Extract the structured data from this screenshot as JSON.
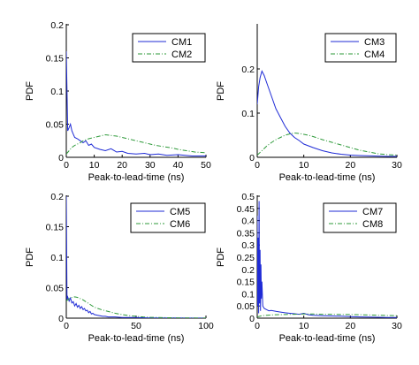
{
  "chart_data": [
    {
      "type": "line",
      "xlabel": "Peak-to-lead-time (ns)",
      "ylabel": "PDF",
      "xlim": [
        0,
        50
      ],
      "ylim": [
        0,
        0.2
      ],
      "xticks": [
        "0",
        "10",
        "20",
        "30",
        "40",
        "50"
      ],
      "yticks": [
        "0",
        "0.05",
        "0.1",
        "0.15",
        "0.2"
      ],
      "legend": "top-right",
      "grid": false,
      "series": [
        {
          "name": "CM1",
          "color": "#1f2bd6",
          "style": "solid",
          "x": [
            0,
            0.5,
            1,
            1.5,
            2,
            2.5,
            3,
            4,
            5,
            6,
            7,
            8,
            9,
            10,
            12,
            14,
            16,
            18,
            20,
            22,
            25,
            28,
            30,
            33,
            36,
            40,
            45,
            50
          ],
          "y": [
            0.16,
            0.04,
            0.045,
            0.05,
            0.04,
            0.035,
            0.03,
            0.028,
            0.025,
            0.022,
            0.025,
            0.018,
            0.02,
            0.015,
            0.012,
            0.01,
            0.013,
            0.008,
            0.009,
            0.006,
            0.005,
            0.006,
            0.004,
            0.005,
            0.003,
            0.004,
            0.002,
            0.002
          ]
        },
        {
          "name": "CM2",
          "color": "#2e9a3a",
          "style": "dashdot",
          "x": [
            0,
            1,
            2,
            3,
            4,
            5,
            6,
            8,
            10,
            12,
            14,
            16,
            18,
            20,
            22,
            24,
            26,
            28,
            30,
            32,
            35,
            38,
            40,
            43,
            46,
            50
          ],
          "y": [
            0.005,
            0.01,
            0.015,
            0.018,
            0.02,
            0.022,
            0.025,
            0.028,
            0.03,
            0.032,
            0.034,
            0.033,
            0.032,
            0.03,
            0.028,
            0.026,
            0.024,
            0.022,
            0.02,
            0.018,
            0.016,
            0.014,
            0.012,
            0.01,
            0.008,
            0.007
          ]
        }
      ]
    },
    {
      "type": "line",
      "xlabel": "Peak-to-lead-time (ns)",
      "ylabel": "PDF",
      "xlim": [
        0,
        30
      ],
      "ylim": [
        0,
        0.3
      ],
      "xticks": [
        "0",
        "10",
        "20",
        "30"
      ],
      "yticks": [
        "0",
        "0.1",
        "0.2"
      ],
      "legend": "top-right",
      "grid": false,
      "series": [
        {
          "name": "CM3",
          "color": "#1f2bd6",
          "style": "solid",
          "x": [
            0,
            0.3,
            0.6,
            1,
            1.5,
            2,
            3,
            4,
            5,
            6,
            7,
            8,
            9,
            10,
            12,
            14,
            16,
            18,
            20,
            22,
            25,
            28,
            30
          ],
          "y": [
            0.12,
            0.16,
            0.18,
            0.195,
            0.185,
            0.17,
            0.14,
            0.11,
            0.09,
            0.07,
            0.055,
            0.045,
            0.038,
            0.03,
            0.022,
            0.015,
            0.01,
            0.007,
            0.005,
            0.004,
            0.003,
            0.002,
            0.002
          ]
        },
        {
          "name": "CM4",
          "color": "#2e9a3a",
          "style": "dashdot",
          "x": [
            0,
            1,
            2,
            3,
            4,
            5,
            6,
            7,
            8,
            9,
            10,
            11,
            12,
            14,
            16,
            18,
            20,
            22,
            24,
            26,
            28,
            30
          ],
          "y": [
            0.005,
            0.015,
            0.025,
            0.033,
            0.04,
            0.045,
            0.05,
            0.053,
            0.055,
            0.054,
            0.052,
            0.05,
            0.047,
            0.04,
            0.034,
            0.028,
            0.022,
            0.016,
            0.012,
            0.008,
            0.006,
            0.005
          ]
        }
      ]
    },
    {
      "type": "line",
      "xlabel": "Peak-to-lead-time (ns)",
      "ylabel": "PDF",
      "xlim": [
        0,
        100
      ],
      "ylim": [
        0,
        0.2
      ],
      "xticks": [
        "0",
        "50",
        "100"
      ],
      "yticks": [
        "0",
        "0.05",
        "0.1",
        "0.15",
        "0.2"
      ],
      "legend": "top-right",
      "grid": false,
      "series": [
        {
          "name": "CM5",
          "color": "#1f2bd6",
          "style": "solid",
          "x": [
            0,
            0.5,
            1,
            2,
            3,
            4,
            5,
            6,
            7,
            8,
            9,
            10,
            11,
            12,
            13,
            14,
            15,
            16,
            17,
            18,
            19,
            20,
            22,
            24,
            26,
            28,
            30,
            35,
            40,
            50,
            60,
            70,
            80,
            90,
            100
          ],
          "y": [
            0.2,
            0.03,
            0.035,
            0.028,
            0.033,
            0.025,
            0.027,
            0.02,
            0.024,
            0.018,
            0.021,
            0.016,
            0.019,
            0.014,
            0.016,
            0.012,
            0.013,
            0.009,
            0.011,
            0.007,
            0.008,
            0.006,
            0.005,
            0.004,
            0.003,
            0.003,
            0.002,
            0.002,
            0.001,
            0.001,
            0.0005,
            0.0005,
            0.0003,
            0.0002,
            0.0001
          ]
        },
        {
          "name": "CM6",
          "color": "#2e9a3a",
          "style": "dashdot",
          "x": [
            0,
            2,
            4,
            6,
            8,
            10,
            12,
            14,
            16,
            18,
            20,
            25,
            30,
            35,
            40,
            45,
            50,
            55,
            60,
            70,
            80,
            90,
            100
          ],
          "y": [
            0.028,
            0.032,
            0.034,
            0.035,
            0.034,
            0.032,
            0.03,
            0.027,
            0.024,
            0.021,
            0.018,
            0.014,
            0.011,
            0.008,
            0.006,
            0.004,
            0.003,
            0.002,
            0.0015,
            0.0008,
            0.0005,
            0.0003,
            0.0002
          ]
        }
      ]
    },
    {
      "type": "line",
      "xlabel": "Peak-to-lead-time (ns)",
      "ylabel": "PDF",
      "xlim": [
        0,
        30
      ],
      "ylim": [
        0,
        0.5
      ],
      "xticks": [
        "0",
        "10",
        "20",
        "30"
      ],
      "yticks": [
        "0",
        "0.05",
        "0.1",
        "0.15",
        "0.2",
        "0.25",
        "0.3",
        "0.35",
        "0.4",
        "0.45",
        "0.5"
      ],
      "legend": "top-right",
      "grid": false,
      "series": [
        {
          "name": "CM7",
          "color": "#1f2bd6",
          "style": "solid",
          "x": [
            0,
            0.1,
            0.2,
            0.3,
            0.4,
            0.5,
            0.6,
            0.7,
            0.8,
            0.9,
            1,
            1.2,
            1.5,
            2,
            2.5,
            3,
            4,
            5,
            6,
            7,
            8,
            9,
            10,
            11,
            12,
            14,
            16,
            18,
            20,
            22,
            25,
            28,
            30
          ],
          "y": [
            0.42,
            0.05,
            0.33,
            0.02,
            0.48,
            0.06,
            0.28,
            0.03,
            0.22,
            0.08,
            0.15,
            0.05,
            0.04,
            0.035,
            0.03,
            0.032,
            0.028,
            0.025,
            0.022,
            0.02,
            0.018,
            0.016,
            0.02,
            0.014,
            0.012,
            0.01,
            0.009,
            0.008,
            0.006,
            0.005,
            0.004,
            0.003,
            0.003
          ]
        },
        {
          "name": "CM8",
          "color": "#2e9a3a",
          "style": "dashdot",
          "x": [
            0,
            1,
            2,
            4,
            6,
            8,
            10,
            12,
            14,
            16,
            18,
            20,
            22,
            24,
            26,
            28,
            30
          ],
          "y": [
            0.005,
            0.01,
            0.012,
            0.014,
            0.015,
            0.016,
            0.017,
            0.017,
            0.016,
            0.016,
            0.015,
            0.015,
            0.014,
            0.013,
            0.012,
            0.011,
            0.01
          ]
        }
      ]
    }
  ]
}
